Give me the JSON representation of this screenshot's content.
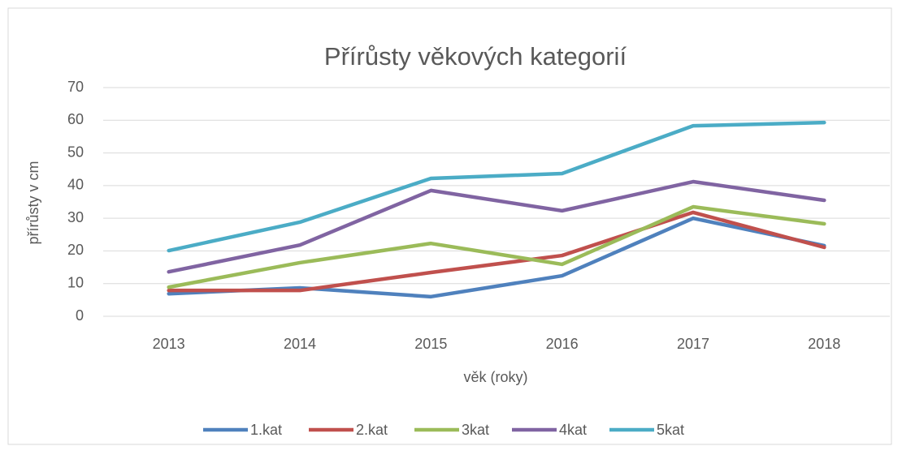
{
  "chart_data": {
    "type": "line",
    "title": "Přírůsty věkových kategorií",
    "x_label": "věk (roky)",
    "y_label": "přírůsty v cm",
    "categories": [
      "2013",
      "2014",
      "2015",
      "2016",
      "2017",
      "2018"
    ],
    "series": [
      {
        "name": "1.kat",
        "color": "#4f81bd",
        "values": [
          6.9,
          8.7,
          6.0,
          12.4,
          30.0,
          21.6
        ]
      },
      {
        "name": "2.kat",
        "color": "#c0504d",
        "values": [
          7.9,
          7.9,
          13.4,
          18.6,
          31.8,
          21.1
        ]
      },
      {
        "name": "3kat",
        "color": "#9bbb59",
        "values": [
          8.9,
          16.4,
          22.3,
          15.9,
          33.5,
          28.3
        ]
      },
      {
        "name": "4kat",
        "color": "#8064a2",
        "values": [
          13.6,
          21.8,
          38.5,
          32.3,
          41.2,
          35.5
        ]
      },
      {
        "name": "5kat",
        "color": "#4bacc6",
        "values": [
          20.1,
          28.8,
          42.2,
          43.7,
          58.3,
          59.3
        ]
      }
    ],
    "ylim": [
      0,
      70
    ],
    "yticks": [
      0,
      10,
      20,
      30,
      40,
      50,
      60,
      70
    ],
    "grid": true,
    "legend": "bottom"
  }
}
